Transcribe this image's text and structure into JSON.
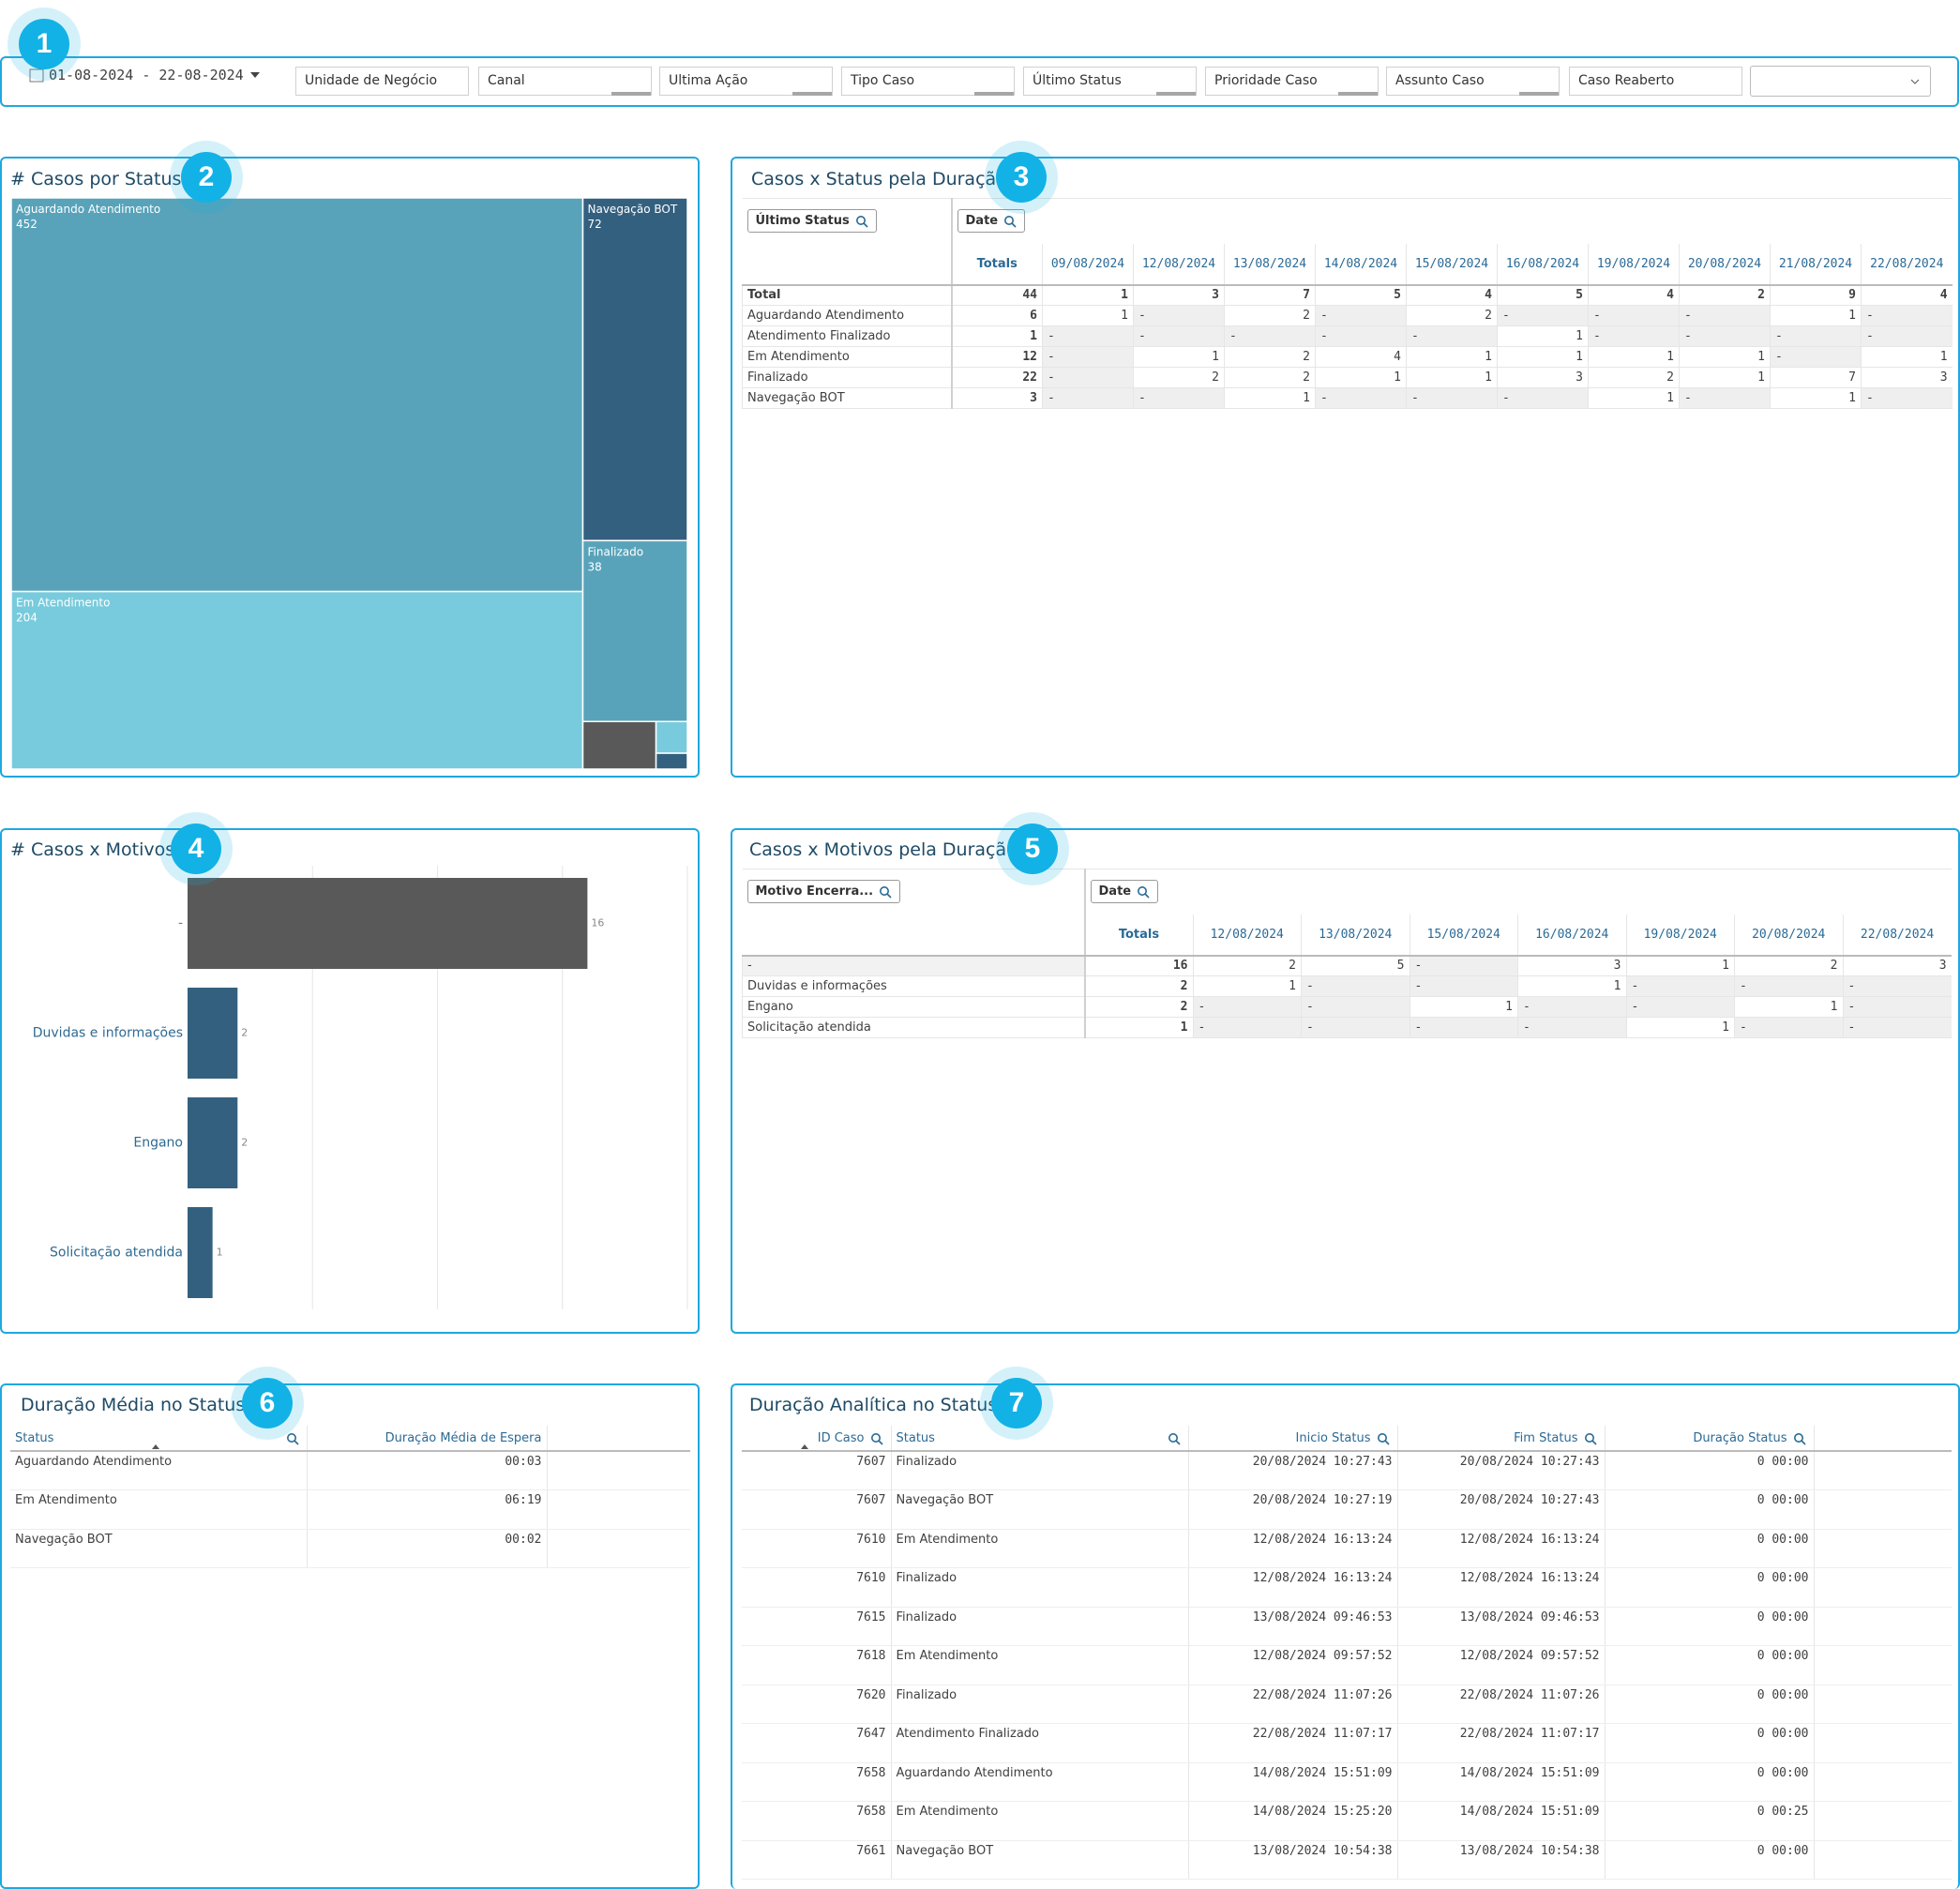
{
  "badges": [
    "1",
    "2",
    "3",
    "4",
    "5",
    "6",
    "7"
  ],
  "filter_bar": {
    "date_range": "01-08-2024 - 22-08-2024",
    "filters": [
      "Unidade de Negócio",
      "Canal",
      "Ultima Ação",
      "Tipo Caso",
      "Último Status",
      "Prioridade Caso",
      "Assunto Caso",
      "Caso Reaberto"
    ]
  },
  "chart_data": [
    {
      "type": "treemap",
      "title": "# Casos por Status",
      "categories": [
        "Aguardando Atendimento",
        "Em Atendimento",
        "Navegação BOT",
        "Finalizado",
        null,
        null,
        null
      ],
      "values": [
        452,
        204,
        72,
        38,
        7,
        2,
        1
      ],
      "colors": [
        "#58a3ba",
        "#78cbdc",
        "#34607f",
        "#58a3ba",
        "#595959",
        "#78cbdc",
        "#34607f"
      ]
    },
    {
      "type": "bar",
      "title": "# Casos x Motivos",
      "categories": [
        "-",
        "Duvidas e informações",
        "Engano",
        "Solicitação atendida"
      ],
      "values": [
        16,
        2,
        2,
        1
      ],
      "colors": [
        "#595959",
        "#34607f",
        "#34607f",
        "#34607f"
      ],
      "xlim": [
        0,
        20
      ],
      "gridlines": [
        5,
        10,
        15,
        20
      ]
    }
  ],
  "pivot_status": {
    "title": "Casos x Status pela Duração",
    "row_field": "Último Status",
    "column_field": "Date",
    "columns": [
      "Totals",
      "09/08/2024",
      "12/08/2024",
      "13/08/2024",
      "14/08/2024",
      "15/08/2024",
      "16/08/2024",
      "19/08/2024",
      "20/08/2024",
      "21/08/2024",
      "22/08/2024"
    ],
    "rows": [
      [
        "Total",
        "44",
        "1",
        "3",
        "7",
        "5",
        "4",
        "5",
        "4",
        "2",
        "9",
        "4"
      ],
      [
        "Aguardando Atendimento",
        "6",
        "1",
        "-",
        "2",
        "-",
        "2",
        "-",
        "-",
        "-",
        "1",
        "-"
      ],
      [
        "Atendimento Finalizado",
        "1",
        "-",
        "-",
        "-",
        "-",
        "-",
        "1",
        "-",
        "-",
        "-",
        "-"
      ],
      [
        "Em Atendimento",
        "12",
        "-",
        "1",
        "2",
        "4",
        "1",
        "1",
        "1",
        "1",
        "-",
        "1"
      ],
      [
        "Finalizado",
        "22",
        "-",
        "2",
        "2",
        "1",
        "1",
        "3",
        "2",
        "1",
        "7",
        "3"
      ],
      [
        "Navegação BOT",
        "3",
        "-",
        "-",
        "1",
        "-",
        "-",
        "-",
        "1",
        "-",
        "1",
        "-"
      ]
    ]
  },
  "pivot_motivos": {
    "title": "Casos x Motivos pela Duração",
    "row_field": "Motivo Encerra...",
    "column_field": "Date",
    "columns": [
      "Totals",
      "12/08/2024",
      "13/08/2024",
      "15/08/2024",
      "16/08/2024",
      "19/08/2024",
      "20/08/2024",
      "22/08/2024"
    ],
    "rows": [
      [
        "-",
        "16",
        "2",
        "5",
        "-",
        "3",
        "1",
        "2",
        "3"
      ],
      [
        "Duvidas e informações",
        "2",
        "1",
        "-",
        "-",
        "1",
        "-",
        "-",
        "-"
      ],
      [
        "Engano",
        "2",
        "-",
        "-",
        "1",
        "-",
        "-",
        "1",
        "-"
      ],
      [
        "Solicitação atendida",
        "1",
        "-",
        "-",
        "-",
        "-",
        "1",
        "-",
        "-"
      ]
    ]
  },
  "avg_table": {
    "title": "Duração Média no Status",
    "columns": [
      "Status",
      "Duração Média de Espera"
    ],
    "rows": [
      [
        "Aguardando Atendimento",
        "00:03"
      ],
      [
        "Em Atendimento",
        "06:19"
      ],
      [
        "Navegação BOT",
        "00:02"
      ]
    ]
  },
  "detail_table": {
    "title": "Duração Analítica no Status",
    "columns": [
      "ID Caso",
      "Status",
      "Inicio Status",
      "Fim Status",
      "Duração Status"
    ],
    "rows": [
      [
        "7607",
        "Finalizado",
        "20/08/2024 10:27:43",
        "20/08/2024 10:27:43",
        "0 00:00"
      ],
      [
        "7607",
        "Navegação BOT",
        "20/08/2024 10:27:19",
        "20/08/2024 10:27:43",
        "0 00:00"
      ],
      [
        "7610",
        "Em Atendimento",
        "12/08/2024 16:13:24",
        "12/08/2024 16:13:24",
        "0 00:00"
      ],
      [
        "7610",
        "Finalizado",
        "12/08/2024 16:13:24",
        "12/08/2024 16:13:24",
        "0 00:00"
      ],
      [
        "7615",
        "Finalizado",
        "13/08/2024 09:46:53",
        "13/08/2024 09:46:53",
        "0 00:00"
      ],
      [
        "7618",
        "Em Atendimento",
        "12/08/2024 09:57:52",
        "12/08/2024 09:57:52",
        "0 00:00"
      ],
      [
        "7620",
        "Finalizado",
        "22/08/2024 11:07:26",
        "22/08/2024 11:07:26",
        "0 00:00"
      ],
      [
        "7647",
        "Atendimento Finalizado",
        "22/08/2024 11:07:17",
        "22/08/2024 11:07:17",
        "0 00:00"
      ],
      [
        "7658",
        "Aguardando Atendimento",
        "14/08/2024 15:51:09",
        "14/08/2024 15:51:09",
        "0 00:00"
      ],
      [
        "7658",
        "Em Atendimento",
        "14/08/2024 15:25:20",
        "14/08/2024 15:51:09",
        "0 00:25"
      ],
      [
        "7661",
        "Navegação BOT",
        "13/08/2024 10:54:38",
        "13/08/2024 10:54:38",
        "0 00:00"
      ]
    ]
  }
}
